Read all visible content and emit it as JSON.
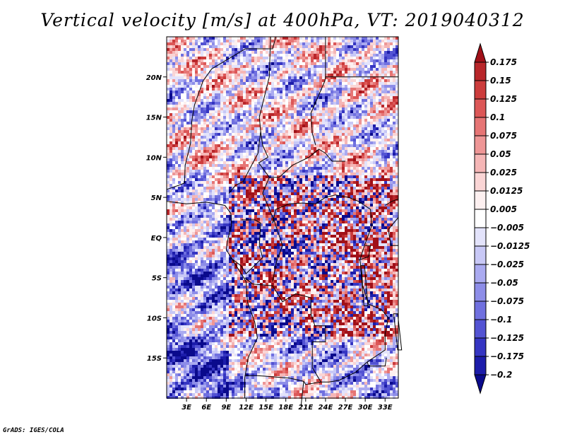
{
  "chart_data": {
    "type": "heatmap",
    "title": "Vertical velocity [m/s] at 400hPa, VT: 2019040312",
    "xlabel": "",
    "ylabel": "",
    "xlim": [
      0,
      35
    ],
    "ylim": [
      -20,
      25
    ],
    "x_ticks": [
      3,
      6,
      9,
      12,
      15,
      18,
      21,
      24,
      27,
      30,
      33
    ],
    "x_tick_labels": [
      "3E",
      "6E",
      "9E",
      "12E",
      "15E",
      "18E",
      "21E",
      "24E",
      "27E",
      "30E",
      "33E"
    ],
    "y_ticks": [
      20,
      15,
      10,
      5,
      0,
      -5,
      -10,
      -15
    ],
    "y_tick_labels": [
      "20N",
      "15N",
      "10N",
      "5N",
      "EQ",
      "5S",
      "10S",
      "15S"
    ],
    "colorbar": {
      "levels": [
        0.175,
        0.15,
        0.125,
        0.1,
        0.075,
        0.05,
        0.025,
        0.0125,
        0.005,
        -0.005,
        -0.0125,
        -0.025,
        -0.05,
        -0.075,
        -0.1,
        -0.125,
        -0.175,
        -0.2
      ],
      "labels": [
        "0.175",
        "0.15",
        "0.125",
        "0.1",
        "0.075",
        "0.05",
        "0.025",
        "0.0125",
        "0.005",
        "−0.005",
        "−0.0125",
        "−0.025",
        "−0.05",
        "−0.075",
        "−0.1",
        "−0.125",
        "−0.175",
        "−0.2"
      ],
      "colors": [
        "#a01018",
        "#b8262a",
        "#cc3c3c",
        "#dc5757",
        "#e67575",
        "#ee9696",
        "#f5b6b6",
        "#fad5d5",
        "#fdf0f0",
        "#ffffff",
        "#e3e3fb",
        "#c8c8f6",
        "#aaaaf0",
        "#8d8de8",
        "#7070df",
        "#5353d3",
        "#3535c2",
        "#1c1caa",
        "#0a0a8c"
      ]
    }
  },
  "footer": "GrADS: IGES/COLA"
}
